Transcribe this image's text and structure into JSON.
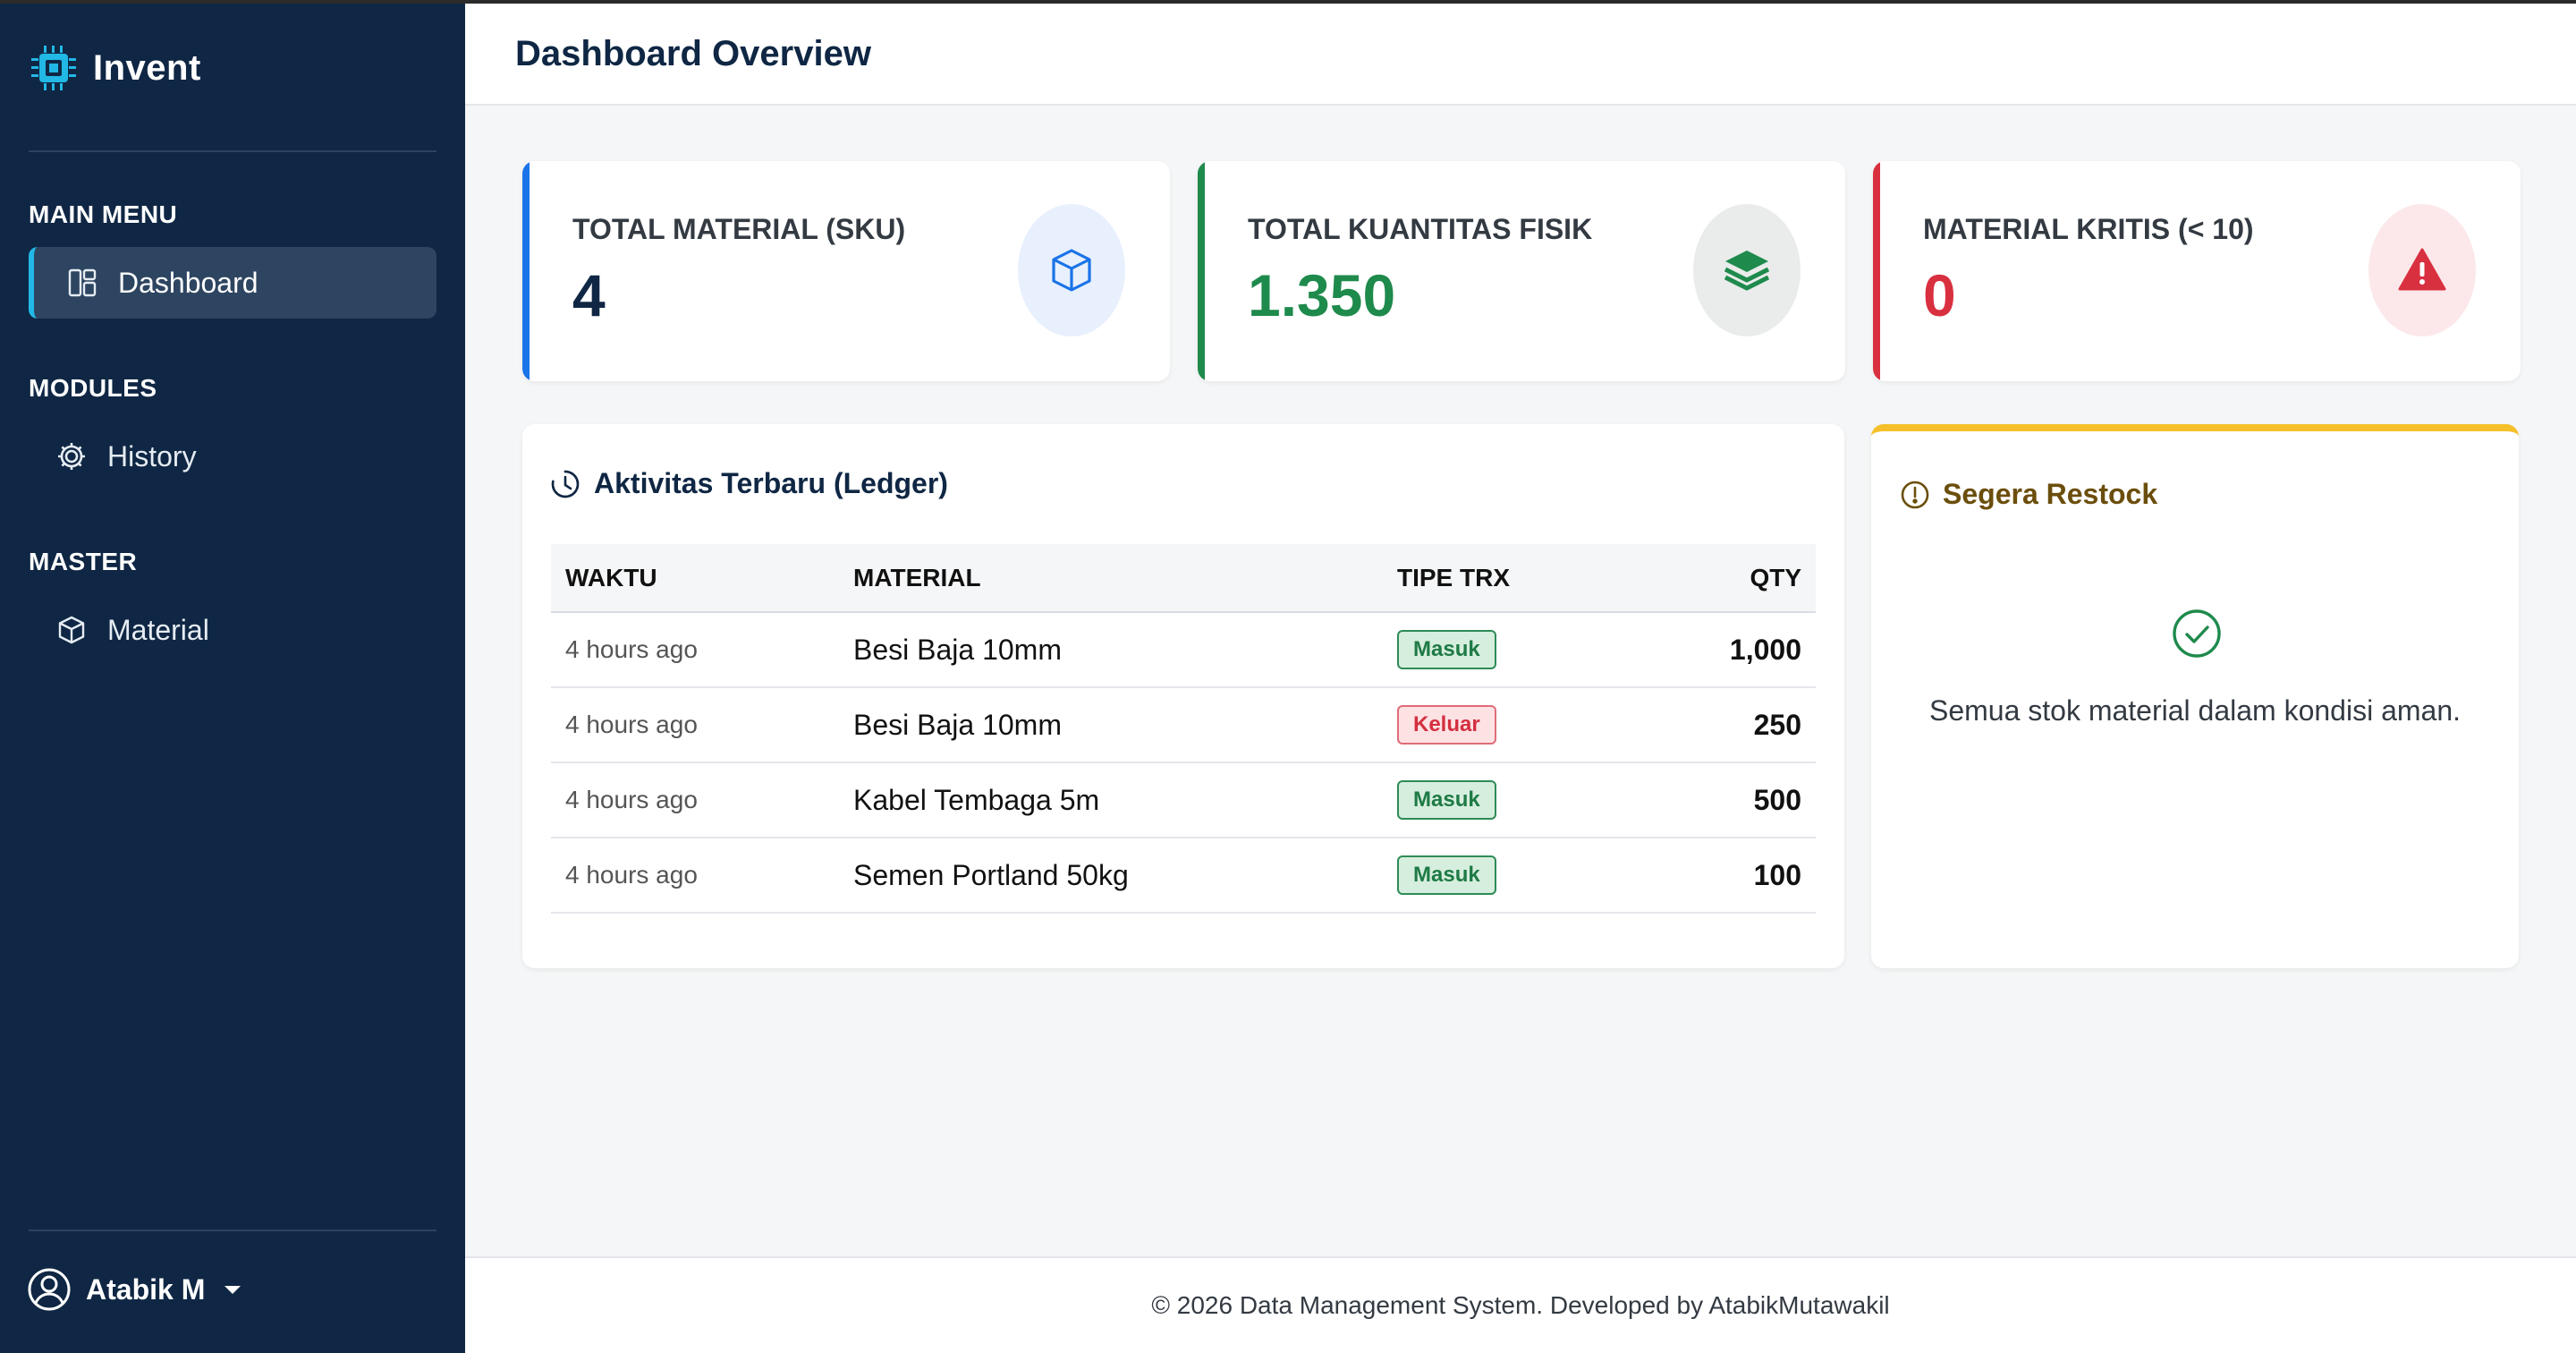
{
  "app": {
    "name": "Invent"
  },
  "sidebar": {
    "sections": [
      {
        "title": "MAIN MENU",
        "items": [
          {
            "label": "Dashboard",
            "icon": "dashboard-icon",
            "active": true
          }
        ]
      },
      {
        "title": "MODULES",
        "items": [
          {
            "label": "History",
            "icon": "gear-icon"
          }
        ]
      },
      {
        "title": "MASTER",
        "items": [
          {
            "label": "Material",
            "icon": "box-icon"
          }
        ]
      }
    ],
    "user": {
      "name": "Atabik M",
      "icon": "user-circle-icon"
    }
  },
  "header": {
    "title": "Dashboard Overview"
  },
  "stats": [
    {
      "label": "TOTAL MATERIAL (SKU)",
      "value": "4",
      "color": "#1a73e8",
      "icon": "box-icon"
    },
    {
      "label": "TOTAL KUANTITAS FISIK",
      "value": "1.350",
      "color": "#1e8a4c",
      "icon": "layers-icon"
    },
    {
      "label": "MATERIAL KRITIS (< 10)",
      "value": "0",
      "color": "#d93040",
      "icon": "warning-icon"
    }
  ],
  "ledger": {
    "title": "Aktivitas Terbaru (Ledger)",
    "columns": [
      "WAKTU",
      "MATERIAL",
      "TIPE TRX",
      "QTY"
    ],
    "rows": [
      {
        "time": "4 hours ago",
        "material": "Besi Baja 10mm",
        "type": "Masuk",
        "qty": "1,000"
      },
      {
        "time": "4 hours ago",
        "material": "Besi Baja 10mm",
        "type": "Keluar",
        "qty": "250"
      },
      {
        "time": "4 hours ago",
        "material": "Kabel Tembaga 5m",
        "type": "Masuk",
        "qty": "500"
      },
      {
        "time": "4 hours ago",
        "material": "Semen Portland 50kg",
        "type": "Masuk",
        "qty": "100"
      }
    ]
  },
  "restock": {
    "title": "Segera Restock",
    "message": "Semua stok material dalam kondisi aman."
  },
  "footer": {
    "text": "© 2026 Data Management System. Developed by AtabikMutawakil"
  }
}
